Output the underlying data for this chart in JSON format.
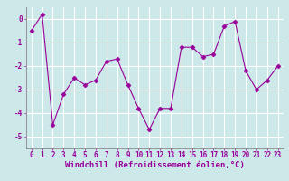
{
  "x": [
    0,
    1,
    2,
    3,
    4,
    5,
    6,
    7,
    8,
    9,
    10,
    11,
    12,
    13,
    14,
    15,
    16,
    17,
    18,
    19,
    20,
    21,
    22,
    23
  ],
  "y": [
    -0.5,
    0.2,
    -4.5,
    -3.2,
    -2.5,
    -2.8,
    -2.6,
    -1.8,
    -1.7,
    -2.8,
    -3.8,
    -4.7,
    -3.8,
    -3.8,
    -1.2,
    -1.2,
    -1.6,
    -1.5,
    -0.3,
    -0.1,
    -2.2,
    -3.0,
    -2.6,
    -2.0
  ],
  "line_color": "#990099",
  "marker": "D",
  "marker_size": 2.5,
  "bg_color": "#cce8e8",
  "grid_color": "#ffffff",
  "xlabel": "Windchill (Refroidissement éolien,°C)",
  "xlabel_fontsize": 6.5,
  "tick_fontsize": 5.5,
  "ylim": [
    -5.5,
    0.5
  ],
  "xlim": [
    -0.5,
    23.5
  ],
  "yticks": [
    0,
    -1,
    -2,
    -3,
    -4,
    -5
  ],
  "xticks": [
    0,
    1,
    2,
    3,
    4,
    5,
    6,
    7,
    8,
    9,
    10,
    11,
    12,
    13,
    14,
    15,
    16,
    17,
    18,
    19,
    20,
    21,
    22,
    23
  ]
}
